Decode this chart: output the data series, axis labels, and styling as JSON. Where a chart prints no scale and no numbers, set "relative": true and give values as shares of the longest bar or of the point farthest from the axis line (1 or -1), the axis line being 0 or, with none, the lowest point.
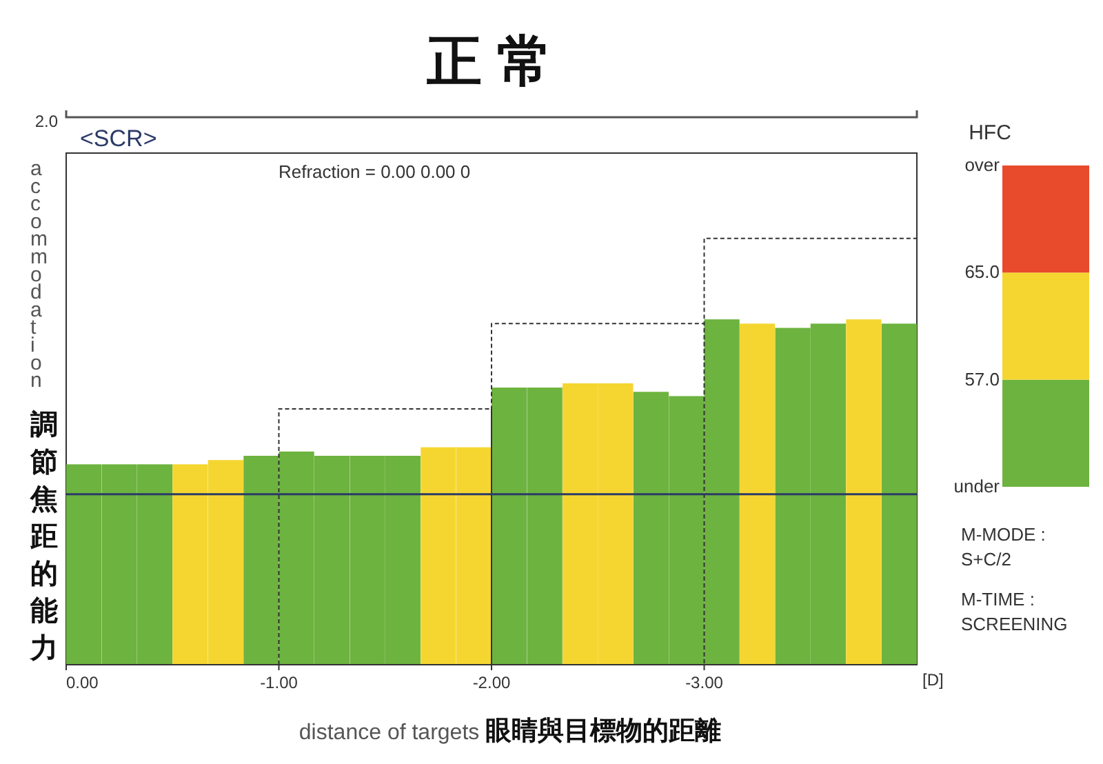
{
  "chart_data": [
    {
      "type": "bar",
      "title": "正 常",
      "xlabel": "distance of targets 眼睛與目標物的距離",
      "ylabel": "accommodation 調節焦距的能力",
      "relative": true,
      "xlim": [
        0,
        -4
      ],
      "xticks": [
        {
          "value": 0,
          "label": "0.00"
        },
        {
          "value": -1,
          "label": "-1.00"
        },
        {
          "value": -2,
          "label": "-2.00"
        },
        {
          "value": -3,
          "label": "-3.00"
        }
      ],
      "annotations": [
        "<SCR>",
        "Refraction = 0.00  0.00  0",
        "2.0",
        "[D]"
      ],
      "ref_lines": [
        {
          "axis": "y",
          "value": 0.4,
          "color": "#2b3a67"
        }
      ],
      "series": [
        {
          "x": [
            -0.083,
            -0.25,
            -0.417,
            -0.583,
            -0.75,
            -0.917,
            -1.083,
            -1.25,
            -1.417,
            -1.583,
            -1.75,
            -1.917,
            -2.083,
            -2.25,
            -2.417,
            -2.583,
            -2.75,
            -2.917,
            -3.083,
            -3.25,
            -3.417,
            -3.583,
            -3.75,
            -3.917
          ],
          "values": [
            0.47,
            0.47,
            0.47,
            0.47,
            0.48,
            0.49,
            0.5,
            0.49,
            0.49,
            0.49,
            0.51,
            0.51,
            0.65,
            0.65,
            0.66,
            0.66,
            0.64,
            0.63,
            0.81,
            0.8,
            0.79,
            0.8,
            0.81,
            0.8
          ],
          "colors": [
            "#6db33f",
            "#6db33f",
            "#6db33f",
            "#f5d631",
            "#f5d631",
            "#6db33f",
            "#6db33f",
            "#6db33f",
            "#6db33f",
            "#6db33f",
            "#f5d631",
            "#f5d631",
            "#6db33f",
            "#6db33f",
            "#f5d631",
            "#f5d631",
            "#6db33f",
            "#6db33f",
            "#6db33f",
            "#f5d631",
            "#6db33f",
            "#6db33f",
            "#f5d631",
            "#6db33f"
          ]
        },
        {
          "type": "line",
          "color": "#333333",
          "line_style": "dashed",
          "x": [
            -1,
            -1,
            -2,
            -2,
            -2,
            -3,
            -3,
            -3,
            -4
          ],
          "values": [
            0,
            0.6,
            0.6,
            0,
            0.8,
            0.8,
            0,
            1,
            1
          ]
        }
      ]
    },
    {
      "type": "bar",
      "title": "HFC",
      "categories": [
        null
      ],
      "ylim": [
        49,
        73
      ],
      "yticks": [
        {
          "value": 49,
          "label": "under"
        },
        {
          "value": 57,
          "label": "57.0"
        },
        {
          "value": 65,
          "label": "65.0"
        },
        {
          "value": 73,
          "label": "over"
        }
      ],
      "annotations": [
        "M-MODE : S+C/2",
        "M-TIME : SCREENING"
      ],
      "series": [
        {
          "color": "#6db33f",
          "base": [
            49
          ],
          "values": [
            8
          ]
        },
        {
          "color": "#f5d631",
          "base": [
            57
          ],
          "values": [
            8
          ]
        },
        {
          "color": "#e84a2c",
          "base": [
            65
          ],
          "values": [
            8
          ]
        }
      ]
    }
  ]
}
